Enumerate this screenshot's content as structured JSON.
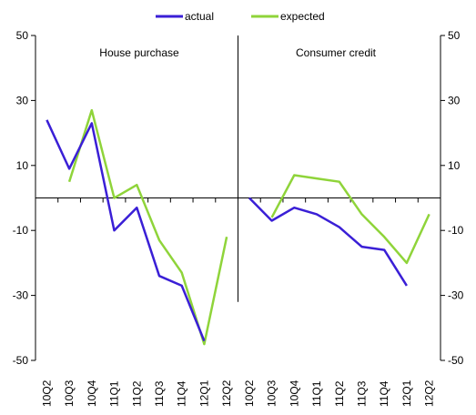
{
  "chart_data": {
    "type": "line",
    "legend": {
      "position": "top-center",
      "entries": [
        "actual",
        "expected"
      ]
    },
    "colors": {
      "actual": "#3a1fd6",
      "expected": "#8fd43a",
      "axis": "#000000"
    },
    "ylim": [
      -50,
      50
    ],
    "yticks": [
      "50",
      "30",
      "10",
      "-10",
      "-30",
      "-50"
    ],
    "ytick_values": [
      50,
      30,
      10,
      -10,
      -30,
      -50
    ],
    "grid": false,
    "panels": [
      {
        "title": "House purchase",
        "categories": [
          "10Q2",
          "10Q3",
          "10Q4",
          "11Q1",
          "11Q2",
          "11Q3",
          "11Q4",
          "12Q1",
          "12Q2"
        ],
        "series": [
          {
            "name": "actual",
            "values": [
              24,
              9,
              23,
              -10,
              -3,
              -24,
              -27,
              -44,
              null
            ]
          },
          {
            "name": "expected",
            "values": [
              null,
              5,
              27,
              0,
              4,
              -13,
              -23,
              -45,
              -12
            ]
          }
        ]
      },
      {
        "title": "Consumer credit",
        "categories": [
          "10Q2",
          "10Q3",
          "10Q4",
          "11Q1",
          "11Q2",
          "11Q3",
          "11Q4",
          "12Q1",
          "12Q2"
        ],
        "series": [
          {
            "name": "actual",
            "values": [
              0,
              -7,
              -3,
              -5,
              -9,
              -15,
              -16,
              -27,
              null
            ]
          },
          {
            "name": "expected",
            "values": [
              null,
              -6,
              7,
              6,
              5,
              -5,
              -12,
              -20,
              -5
            ]
          }
        ]
      }
    ]
  }
}
